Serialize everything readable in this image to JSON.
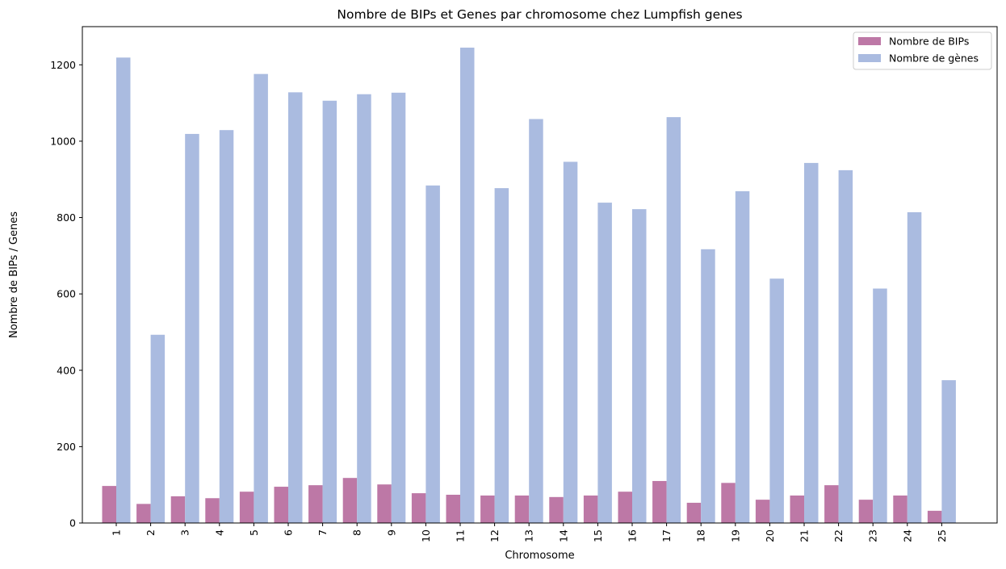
{
  "chart_data": {
    "type": "bar",
    "title": "Nombre de BIPs et Genes par chromosome chez Lumpfish genes",
    "xlabel": "Chromosome",
    "ylabel": "Nombre de BIPs / Genes",
    "ylim": [
      0,
      1300
    ],
    "yticks": [
      0,
      200,
      400,
      600,
      800,
      1000,
      1200
    ],
    "categories": [
      "1",
      "2",
      "3",
      "4",
      "5",
      "6",
      "7",
      "8",
      "9",
      "10",
      "11",
      "12",
      "13",
      "14",
      "15",
      "16",
      "17",
      "18",
      "19",
      "20",
      "21",
      "22",
      "23",
      "24",
      "25"
    ],
    "series": [
      {
        "name": "Nombre de BIPs",
        "color": "#bd78a6",
        "values": [
          97,
          50,
          70,
          65,
          82,
          95,
          99,
          118,
          101,
          78,
          74,
          72,
          72,
          68,
          72,
          82,
          110,
          53,
          105,
          61,
          72,
          99,
          61,
          72,
          32
        ]
      },
      {
        "name": "Nombre de gènes",
        "color": "#aabbe0",
        "values": [
          1219,
          493,
          1019,
          1029,
          1176,
          1128,
          1106,
          1123,
          1127,
          884,
          1245,
          877,
          1058,
          946,
          839,
          822,
          1063,
          717,
          869,
          640,
          943,
          924,
          614,
          814,
          374
        ]
      }
    ],
    "legend_position": "top-right",
    "grid": false
  }
}
